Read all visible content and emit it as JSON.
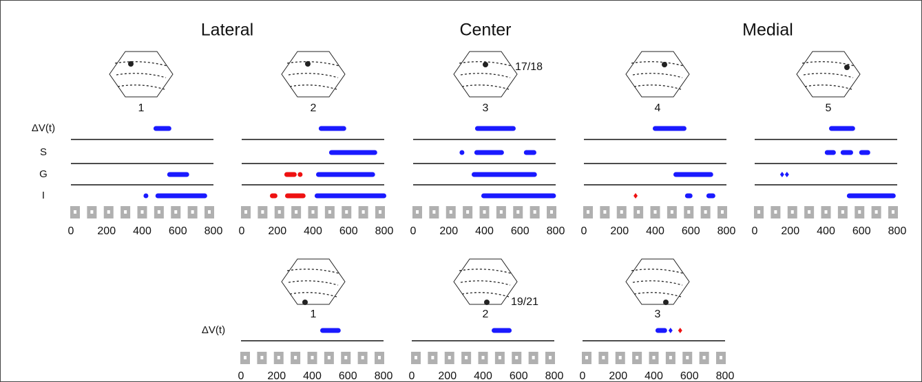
{
  "headers": [
    "Lateral",
    "Center",
    "Medial"
  ],
  "row_labels": [
    "ΔV(t)",
    "S",
    "G",
    "I"
  ],
  "xlim": [
    0,
    800
  ],
  "xticks": [
    0,
    200,
    400,
    600,
    800
  ],
  "top_annotation": "17/18",
  "bottom_annotation": "19/21",
  "top_panels": [
    {
      "label": "1",
      "rows": [
        {
          "segments": [
            {
              "color": "#1a1aff",
              "start": 475,
              "end": 552
            }
          ],
          "points": []
        },
        {
          "segments": [],
          "points": []
        },
        {
          "segments": [
            {
              "color": "#1a1aff",
              "start": 552,
              "end": 652
            }
          ],
          "points": []
        },
        {
          "segments": [
            {
              "color": "#1a1aff",
              "start": 486,
              "end": 753
            }
          ],
          "points": [
            {
              "color": "#1a1aff",
              "shape": "dot",
              "value": 421
            }
          ]
        }
      ]
    },
    {
      "label": "2",
      "rows": [
        {
          "segments": [
            {
              "color": "#1a1aff",
              "start": 444,
              "end": 575
            }
          ],
          "points": []
        },
        {
          "segments": [
            {
              "color": "#1a1aff",
              "start": 502,
              "end": 749
            }
          ],
          "points": []
        },
        {
          "segments": [
            {
              "color": "#ee1111",
              "start": 251,
              "end": 297
            },
            {
              "color": "#1a1aff",
              "start": 429,
              "end": 737
            }
          ],
          "points": [
            {
              "color": "#ee1111",
              "shape": "dot",
              "value": 328
            }
          ]
        },
        {
          "segments": [
            {
              "color": "#ee1111",
              "start": 170,
              "end": 189
            },
            {
              "color": "#ee1111",
              "start": 255,
              "end": 347
            },
            {
              "color": "#1a1aff",
              "start": 421,
              "end": 800
            }
          ],
          "points": []
        }
      ]
    },
    {
      "label": "3",
      "rows": [
        {
          "segments": [
            {
              "color": "#1a1aff",
              "start": 359,
              "end": 564
            }
          ],
          "points": []
        },
        {
          "segments": [
            {
              "color": "#1a1aff",
              "start": 355,
              "end": 498
            },
            {
              "color": "#1a1aff",
              "start": 633,
              "end": 680
            }
          ],
          "points": [
            {
              "color": "#1a1aff",
              "shape": "dot",
              "value": 274
            }
          ]
        },
        {
          "segments": [
            {
              "color": "#1a1aff",
              "start": 340,
              "end": 683
            }
          ],
          "points": []
        },
        {
          "segments": [
            {
              "color": "#1a1aff",
              "start": 394,
              "end": 790
            }
          ],
          "points": []
        }
      ]
    },
    {
      "label": "4",
      "rows": [
        {
          "segments": [
            {
              "color": "#1a1aff",
              "start": 398,
              "end": 564
            }
          ],
          "points": []
        },
        {
          "segments": [],
          "points": []
        },
        {
          "segments": [
            {
              "color": "#1a1aff",
              "start": 514,
              "end": 714
            }
          ],
          "points": []
        },
        {
          "segments": [
            {
              "color": "#1a1aff",
              "start": 579,
              "end": 598
            },
            {
              "color": "#1a1aff",
              "start": 699,
              "end": 726
            }
          ],
          "points": [
            {
              "color": "#ee1111",
              "shape": "diamond",
              "value": 290
            }
          ]
        }
      ]
    },
    {
      "label": "5",
      "rows": [
        {
          "segments": [
            {
              "color": "#1a1aff",
              "start": 429,
              "end": 552
            }
          ],
          "points": []
        },
        {
          "segments": [
            {
              "color": "#1a1aff",
              "start": 405,
              "end": 444
            },
            {
              "color": "#1a1aff",
              "start": 494,
              "end": 541
            },
            {
              "color": "#1a1aff",
              "start": 598,
              "end": 637
            }
          ],
          "points": []
        },
        {
          "segments": [],
          "points": [
            {
              "color": "#1a1aff",
              "shape": "diamond",
              "value": 154
            },
            {
              "color": "#1a1aff",
              "shape": "diamond",
              "value": 181
            }
          ]
        },
        {
          "segments": [
            {
              "color": "#1a1aff",
              "start": 529,
              "end": 780
            }
          ],
          "points": []
        }
      ]
    }
  ],
  "bottom_panels": [
    {
      "label": "1",
      "rows": [
        {
          "segments": [
            {
              "color": "#1a1aff",
              "start": 456,
              "end": 548
            }
          ],
          "points": []
        }
      ]
    },
    {
      "label": "2",
      "rows": [
        {
          "segments": [
            {
              "color": "#1a1aff",
              "start": 460,
              "end": 549
            }
          ],
          "points": []
        }
      ]
    },
    {
      "label": "3",
      "rows": [
        {
          "segments": [
            {
              "color": "#1a1aff",
              "start": 421,
              "end": 463
            }
          ],
          "points": [
            {
              "color": "#1a1aff",
              "shape": "diamond",
              "value": 494
            },
            {
              "color": "#ee1111",
              "shape": "diamond",
              "value": 548
            }
          ]
        }
      ]
    }
  ]
}
